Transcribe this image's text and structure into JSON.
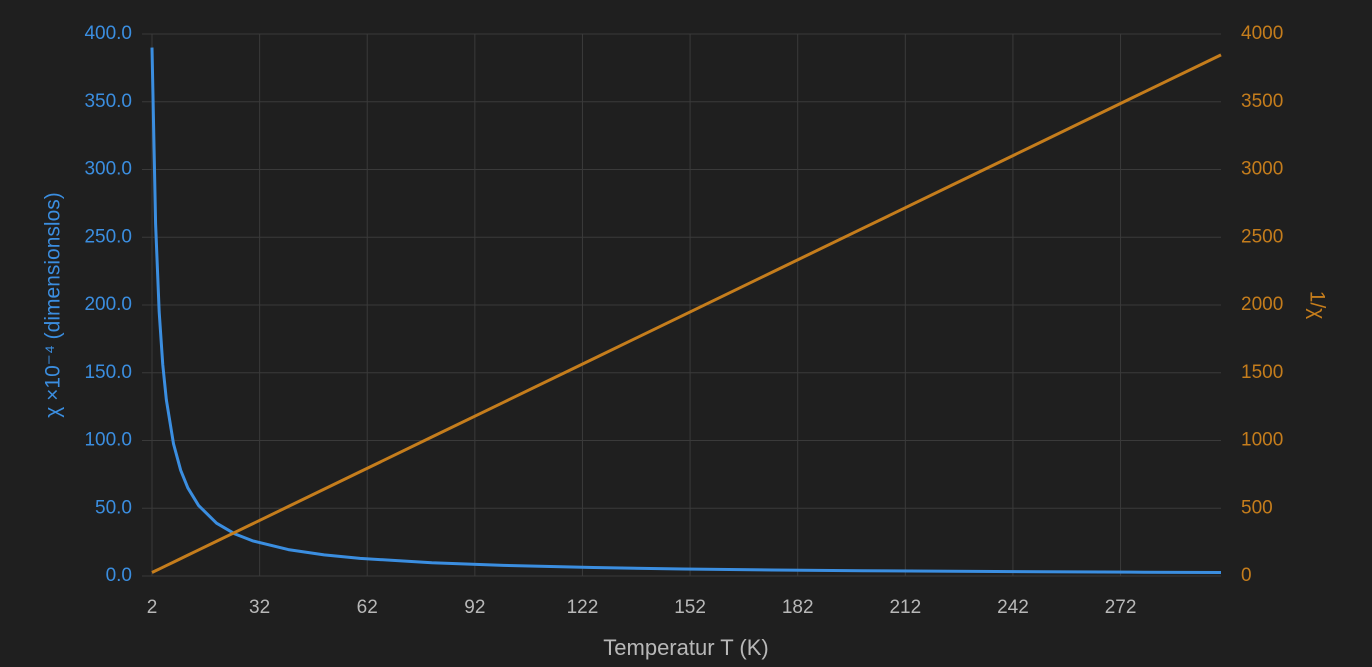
{
  "chart_data": {
    "type": "line",
    "x_label": "Temperatur T (K)",
    "y_label": "χ ×10⁻⁴ (dimensionslos)",
    "y2_label": "1/χ",
    "x": [
      2,
      3,
      4,
      5,
      6,
      8,
      10,
      12,
      15,
      20,
      25,
      30,
      40,
      50,
      60,
      80,
      100,
      125,
      150,
      175,
      200,
      225,
      250,
      275,
      300
    ],
    "series": [
      {
        "name": "χ",
        "color": "#3b8ee0",
        "values": [
          390,
          260,
          195,
          156,
          130,
          97.5,
          78,
          65,
          52,
          39,
          31.2,
          26,
          19.5,
          15.6,
          13,
          9.75,
          7.8,
          6.24,
          5.2,
          4.46,
          3.9,
          3.47,
          3.12,
          2.84,
          2.6
        ]
      },
      {
        "name": "1/χ",
        "color": "#c57d1c",
        "axis": "y2",
        "values": [
          25.6,
          38.5,
          51.3,
          64.1,
          76.9,
          102.6,
          128.2,
          153.8,
          192.3,
          256.4,
          320.5,
          384.6,
          512.8,
          641,
          769.2,
          1025.6,
          1282,
          1602.6,
          1923,
          2243.6,
          2564,
          2884.6,
          3205,
          3525.6,
          3846
        ]
      }
    ],
    "xlim": [
      2,
      300
    ],
    "xticks": [
      2,
      32,
      62,
      92,
      122,
      152,
      182,
      212,
      242,
      272
    ],
    "ylim": [
      0,
      400
    ],
    "yticks": [
      {
        "value": 0,
        "label": "0.0"
      },
      {
        "value": 50,
        "label": "50.0"
      },
      {
        "value": 100,
        "label": "100.0"
      },
      {
        "value": 150,
        "label": "150.0"
      },
      {
        "value": 200,
        "label": "200.0"
      },
      {
        "value": 250,
        "label": "250.0"
      },
      {
        "value": 300,
        "label": "300.0"
      },
      {
        "value": 350,
        "label": "350.0"
      },
      {
        "value": 400,
        "label": "400.0"
      }
    ],
    "y2lim": [
      0,
      4000
    ],
    "y2ticks": [
      0,
      500,
      1000,
      1500,
      2000,
      2500,
      3000,
      3500,
      4000
    ],
    "grid": true
  }
}
